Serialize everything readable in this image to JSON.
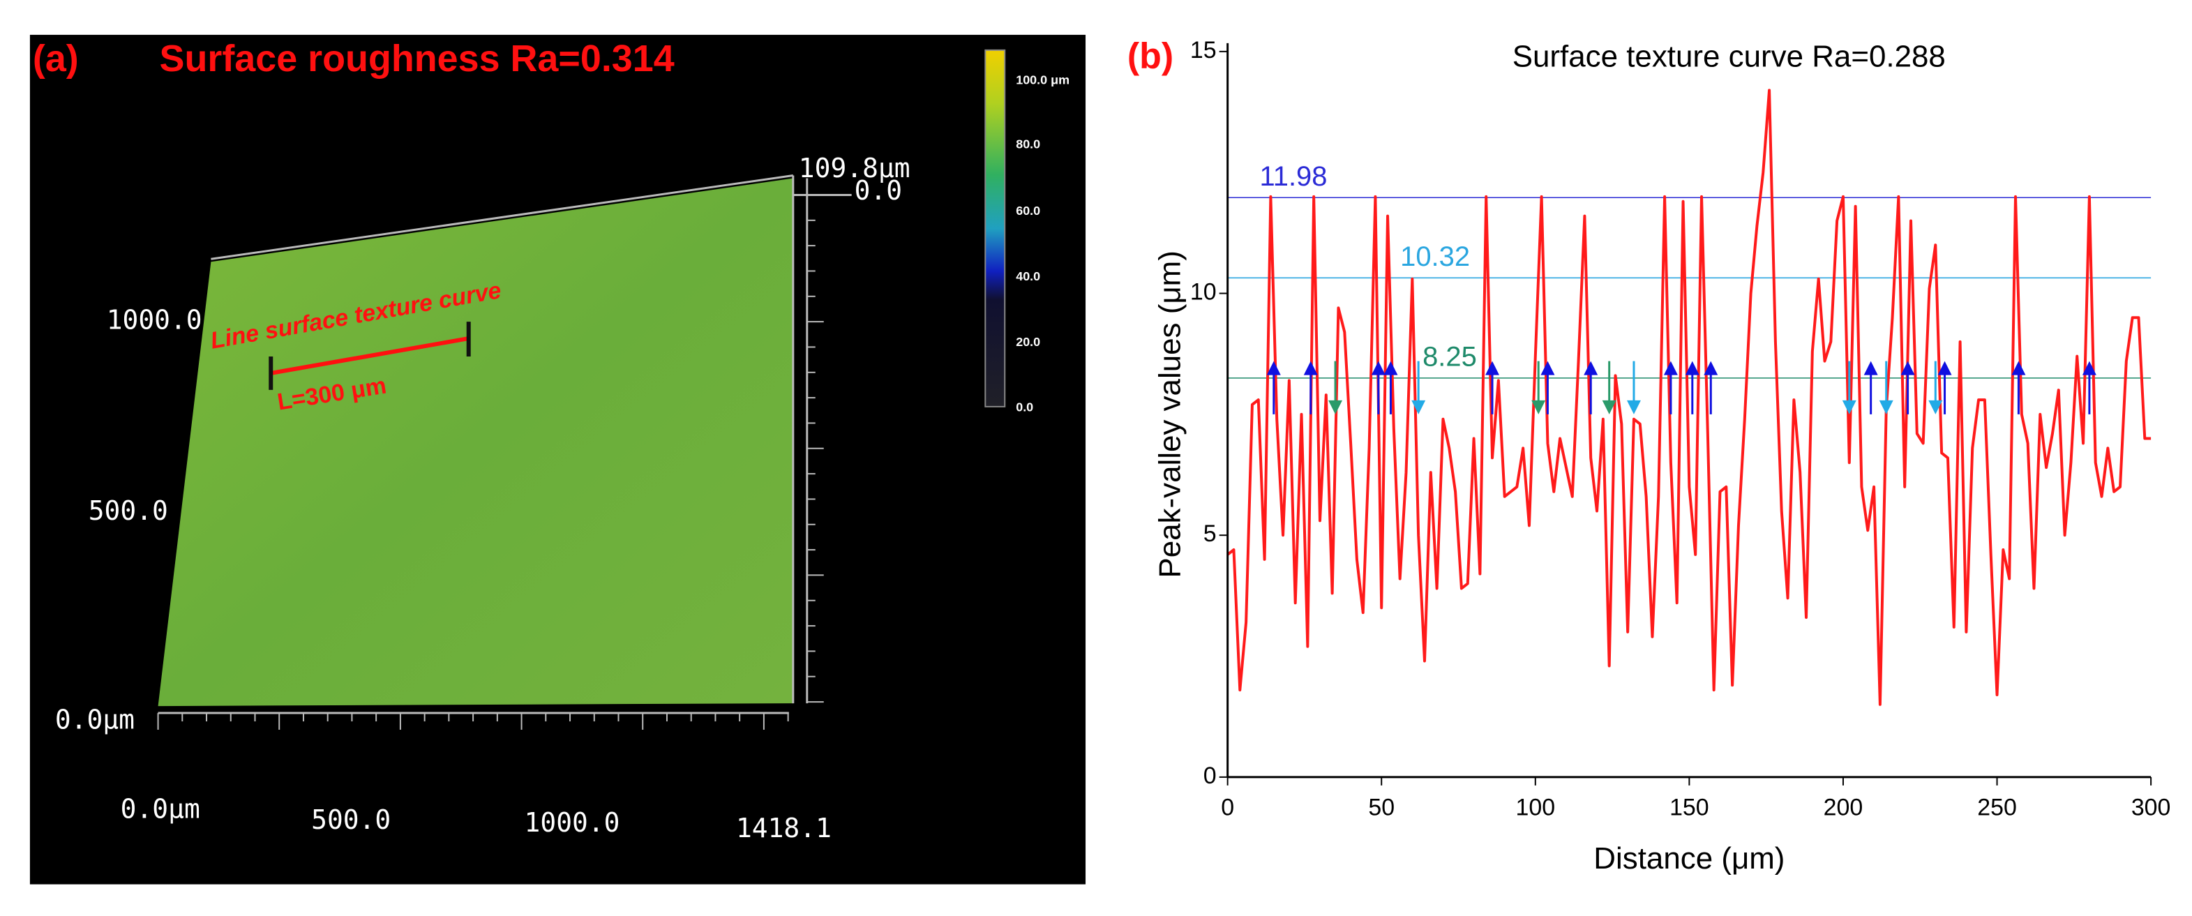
{
  "image_panel": {
    "label": "(a)",
    "title": "Surface roughness Ra=0.314",
    "z_max": "109.8μm",
    "z_min": "0.0",
    "y_labels": [
      "1000.0",
      "500.0",
      "0.0μm"
    ],
    "x_labels": [
      "0.0μm",
      "500.0",
      "1000.0",
      "1418.1"
    ],
    "line_label": "Line surface texture curve",
    "length_label": "L=300 μm",
    "colorbar_labels": [
      "100.0 μm",
      "80.0",
      "60.0",
      "40.0",
      "20.0",
      "0.0"
    ]
  },
  "chart_data": {
    "type": "line",
    "panel_label": "(b)",
    "title": "Surface texture curve Ra=0.288",
    "xlabel": "Distance (μm)",
    "ylabel": "Peak-valley values (μm)",
    "xlim": [
      0,
      300
    ],
    "ylim": [
      0,
      15
    ],
    "xticks": [
      0,
      50,
      100,
      150,
      200,
      250,
      300
    ],
    "yticks": [
      0,
      5,
      10,
      15
    ],
    "series": [
      {
        "color": "#ff1a1a",
        "x": [
          0,
          2,
          4,
          6,
          8,
          10,
          12,
          14,
          16,
          18,
          20,
          22,
          24,
          26,
          28,
          30,
          32,
          34,
          36,
          38,
          40,
          42,
          44,
          46,
          48,
          50,
          52,
          54,
          56,
          58,
          60,
          62,
          64,
          66,
          68,
          70,
          72,
          74,
          76,
          78,
          80,
          82,
          84,
          86,
          88,
          90,
          92,
          94,
          96,
          98,
          100,
          102,
          104,
          106,
          108,
          110,
          112,
          114,
          116,
          118,
          120,
          122,
          124,
          126,
          128,
          130,
          132,
          134,
          136,
          138,
          140,
          142,
          144,
          146,
          148,
          150,
          152,
          154,
          156,
          158,
          160,
          162,
          164,
          166,
          168,
          170,
          172,
          174,
          176,
          178,
          180,
          182,
          184,
          186,
          188,
          190,
          192,
          194,
          196,
          198,
          200,
          202,
          204,
          206,
          208,
          210,
          212,
          214,
          216,
          218,
          220,
          222,
          224,
          226,
          228,
          230,
          232,
          234,
          236,
          238,
          240,
          242,
          244,
          246,
          248,
          250,
          252,
          254,
          256,
          258,
          260,
          262,
          264,
          266,
          268,
          270,
          272,
          274,
          276,
          278,
          280,
          282,
          284,
          286,
          288,
          290,
          292,
          294,
          296,
          298,
          300
        ],
        "values": [
          4.6,
          4.7,
          1.8,
          3.2,
          7.7,
          7.8,
          4.5,
          12.0,
          7.4,
          5.0,
          8.2,
          3.6,
          7.5,
          2.7,
          12.0,
          5.3,
          7.9,
          3.8,
          9.7,
          9.2,
          6.9,
          4.5,
          3.4,
          6.8,
          12.0,
          3.5,
          11.6,
          7.2,
          4.1,
          6.3,
          10.3,
          5.0,
          2.4,
          6.3,
          3.9,
          7.4,
          6.8,
          5.9,
          3.9,
          4.0,
          7.0,
          4.2,
          12.0,
          6.6,
          8.2,
          5.8,
          5.9,
          6.0,
          6.8,
          5.2,
          8.7,
          12.0,
          6.9,
          5.9,
          7.0,
          6.4,
          5.8,
          8.6,
          11.6,
          6.6,
          5.5,
          7.4,
          2.3,
          8.3,
          7.3,
          3.0,
          7.4,
          7.3,
          5.8,
          2.9,
          5.8,
          12.0,
          6.5,
          3.6,
          11.9,
          6.0,
          4.6,
          12.0,
          7.1,
          1.8,
          5.9,
          6.0,
          1.9,
          5.2,
          7.4,
          10.0,
          11.4,
          12.5,
          14.2,
          9.0,
          5.5,
          3.7,
          7.8,
          6.3,
          3.3,
          8.8,
          10.3,
          8.6,
          9.0,
          11.5,
          12.0,
          6.5,
          11.8,
          6.0,
          5.1,
          6.0,
          1.5,
          7.6,
          9.5,
          12.0,
          6.0,
          11.5,
          7.1,
          6.9,
          10.1,
          11.0,
          6.7,
          6.6,
          3.1,
          9.0,
          3.0,
          6.8,
          7.8,
          7.8,
          4.6,
          1.7,
          4.7,
          4.1,
          12.0,
          7.5,
          6.9,
          3.9,
          7.5,
          6.4,
          7.1,
          8.0,
          5.0,
          6.5,
          8.7,
          6.9,
          12.0,
          6.5,
          5.8,
          6.8,
          5.9,
          6.0,
          8.6,
          9.5,
          9.5,
          7.0,
          7.0
        ]
      }
    ],
    "hlines": [
      {
        "value": 11.98,
        "color": "#2b2bd6"
      },
      {
        "value": 10.32,
        "color": "#2aa6e0"
      },
      {
        "value": 8.25,
        "color": "#1e8a6a"
      }
    ],
    "peak_arrows": {
      "color": "#1010e0",
      "x": [
        15,
        27,
        49,
        53,
        86,
        104,
        118,
        144,
        151,
        157,
        209,
        221,
        233,
        257,
        280
      ]
    },
    "valley_arrows_green": {
      "color": "#2a9a6a",
      "x": [
        35,
        101,
        124
      ]
    },
    "valley_arrows_cyan": {
      "color": "#22aae6",
      "x": [
        62,
        132,
        202,
        214,
        230
      ]
    }
  }
}
